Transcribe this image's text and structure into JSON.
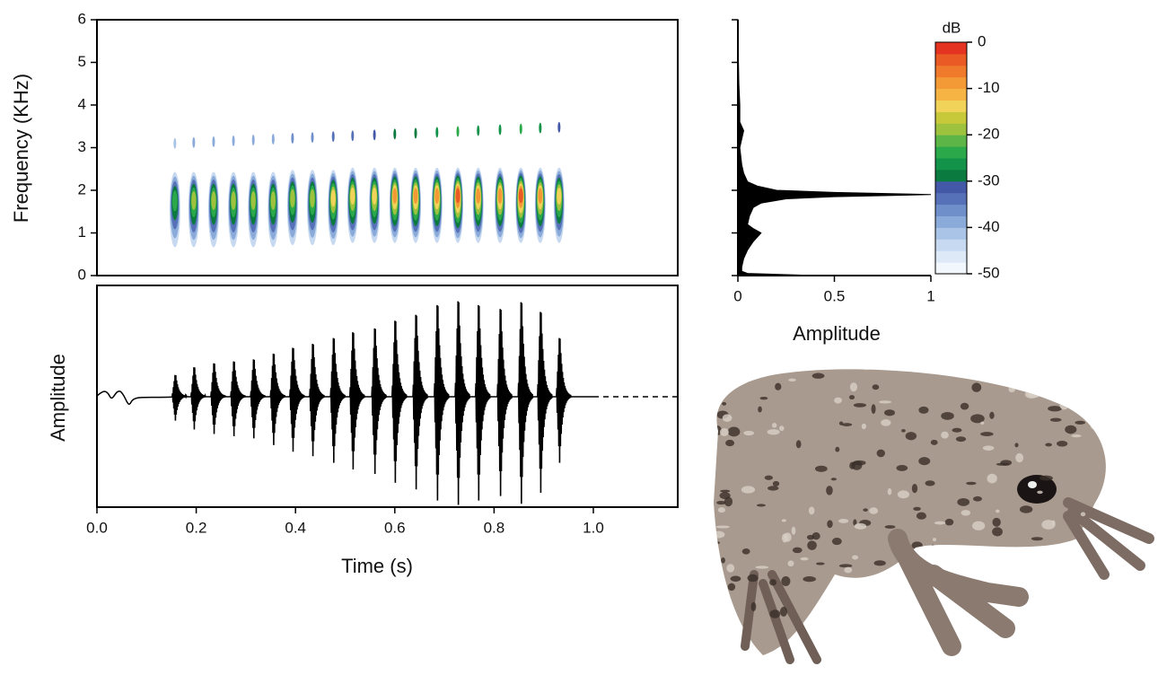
{
  "chart_data": [
    {
      "type": "spectrogram",
      "ylabel": "Frequency (KHz)",
      "xlim": [
        0,
        1.17
      ],
      "ylim": [
        0,
        6
      ],
      "yticks": [
        0,
        1,
        2,
        3,
        4,
        5,
        6
      ],
      "x": [
        0.157,
        0.195,
        0.235,
        0.275,
        0.315,
        0.355,
        0.394,
        0.434,
        0.476,
        0.515,
        0.559,
        0.6,
        0.642,
        0.685,
        0.727,
        0.768,
        0.812,
        0.854,
        0.893,
        0.931
      ],
      "peak_frequency": [
        1.8,
        1.8,
        1.8,
        1.8,
        1.8,
        1.8,
        1.85,
        1.85,
        1.85,
        1.9,
        1.9,
        1.9,
        1.9,
        1.9,
        1.9,
        1.9,
        1.9,
        1.9,
        1.9,
        1.9
      ],
      "peak_level": [
        -22,
        -20,
        -20,
        -20,
        -19,
        -19,
        -17,
        -16,
        -15,
        -13,
        -12,
        -10,
        -9,
        -7,
        -5,
        -6,
        -6,
        -5,
        -7,
        -12
      ]
    },
    {
      "type": "oscillogram",
      "ylabel": "Amplitude",
      "xlabel": "Time (s)",
      "xlim": [
        0,
        1.17
      ],
      "ylim": [
        -1,
        1
      ],
      "xticks": [
        {
          "value": 0,
          "label": "0.0"
        },
        0.2,
        0.4,
        0.6,
        0.8,
        {
          "value": 1,
          "label": "1.0"
        }
      ],
      "x": [
        0.157,
        0.195,
        0.235,
        0.275,
        0.315,
        0.355,
        0.394,
        0.434,
        0.476,
        0.515,
        0.559,
        0.6,
        0.642,
        0.685,
        0.727,
        0.768,
        0.812,
        0.854,
        0.893,
        0.931
      ],
      "values": [
        0.22,
        0.3,
        0.34,
        0.36,
        0.38,
        0.44,
        0.5,
        0.54,
        0.6,
        0.66,
        0.7,
        0.78,
        0.84,
        0.94,
        0.98,
        0.94,
        0.9,
        0.97,
        0.87,
        0.6
      ]
    },
    {
      "type": "spectrum",
      "xlabel": "Amplitude",
      "xlim": [
        0,
        1
      ],
      "xticks": [
        0,
        0.5,
        1
      ],
      "ylim": [
        0,
        6
      ],
      "yticks": [
        0,
        1,
        2,
        3,
        4,
        5,
        6
      ],
      "ytick_labels": false,
      "frequency": [
        0,
        0.05,
        0.1,
        0.2,
        0.4,
        0.6,
        0.8,
        0.9,
        1.0,
        1.1,
        1.2,
        1.4,
        1.6,
        1.7,
        1.8,
        1.85,
        1.9,
        1.95,
        2.0,
        2.1,
        2.2,
        2.4,
        2.6,
        2.8,
        3.0,
        3.2,
        3.4,
        3.6,
        4.0,
        4.5,
        5.0,
        5.5,
        6.0
      ],
      "values": [
        0.4,
        0.05,
        0.02,
        0.02,
        0.03,
        0.05,
        0.08,
        0.1,
        0.12,
        0.08,
        0.05,
        0.06,
        0.08,
        0.12,
        0.25,
        0.5,
        1.0,
        0.5,
        0.2,
        0.1,
        0.05,
        0.03,
        0.02,
        0.015,
        0.01,
        0.02,
        0.03,
        0.01,
        0.01,
        0.005,
        0.003,
        0.002,
        0.001
      ],
      "color": "#000000"
    },
    {
      "type": "colorbar",
      "title": "dB",
      "lim": [
        -50,
        0
      ],
      "ticks": [
        0,
        -10,
        -20,
        -30,
        -40,
        -50
      ],
      "colors": [
        "#f2f7fd",
        "#dde9f7",
        "#c6d9f0",
        "#a9c4e6",
        "#8aaad9",
        "#6f8fcb",
        "#5671b8",
        "#4359a8",
        "#0b7a3e",
        "#13934a",
        "#2aa84a",
        "#5db548",
        "#9fc23e",
        "#c8c93a",
        "#f2d35a",
        "#f6b445",
        "#f39a36",
        "#ef7a2b",
        "#ea5a24",
        "#e53322"
      ]
    }
  ]
}
